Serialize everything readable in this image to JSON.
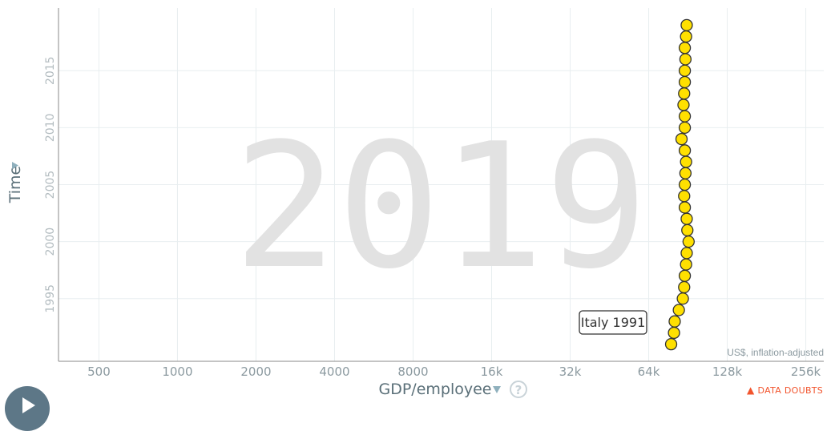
{
  "chart_data": {
    "type": "scatter",
    "year_watermark": "2019",
    "xlabel": "GDP/employee",
    "ylabel": "Time",
    "x_scale": "log2",
    "xlim": [
      350,
      300000
    ],
    "ylim": [
      1989.5,
      2020.5
    ],
    "x_ticks": [
      500,
      1000,
      2000,
      4000,
      8000,
      16000,
      32000,
      64000,
      128000,
      256000
    ],
    "x_tick_labels": [
      "500",
      "1000",
      "2000",
      "4000",
      "8000",
      "16k",
      "32k",
      "64k",
      "128k",
      "256k"
    ],
    "y_ticks": [
      1995,
      2000,
      2005,
      2010,
      2015
    ],
    "y_tick_labels": [
      "1995",
      "2000",
      "2005",
      "2010",
      "2015"
    ],
    "unit_note": "US$, inflation-adjusted",
    "highlight_label": "Italy 1991",
    "highlight_index": 0,
    "point_color": "#ffe000",
    "point_stroke": "#333333",
    "series": [
      {
        "points": [
          {
            "year": 1991,
            "x": 78000
          },
          {
            "year": 1992,
            "x": 80000
          },
          {
            "year": 1993,
            "x": 80500
          },
          {
            "year": 1994,
            "x": 83500
          },
          {
            "year": 1995,
            "x": 86500
          },
          {
            "year": 1996,
            "x": 87500
          },
          {
            "year": 1997,
            "x": 88000
          },
          {
            "year": 1998,
            "x": 89000
          },
          {
            "year": 1999,
            "x": 89500
          },
          {
            "year": 2000,
            "x": 91000
          },
          {
            "year": 2001,
            "x": 90000
          },
          {
            "year": 2002,
            "x": 89500
          },
          {
            "year": 2003,
            "x": 88000
          },
          {
            "year": 2004,
            "x": 87500
          },
          {
            "year": 2005,
            "x": 88000
          },
          {
            "year": 2006,
            "x": 88500
          },
          {
            "year": 2007,
            "x": 89000
          },
          {
            "year": 2008,
            "x": 88000
          },
          {
            "year": 2009,
            "x": 85500
          },
          {
            "year": 2010,
            "x": 88000
          },
          {
            "year": 2011,
            "x": 88000
          },
          {
            "year": 2012,
            "x": 87000
          },
          {
            "year": 2013,
            "x": 87500
          },
          {
            "year": 2014,
            "x": 88000
          },
          {
            "year": 2015,
            "x": 88000
          },
          {
            "year": 2016,
            "x": 88500
          },
          {
            "year": 2017,
            "x": 88000
          },
          {
            "year": 2018,
            "x": 89000
          },
          {
            "year": 2019,
            "x": 89500
          }
        ]
      }
    ]
  },
  "ui": {
    "data_doubts_label": "DATA DOUBTS",
    "help_glyph": "?",
    "axis_dropdown_icon": "triangle-down-icon",
    "warning_icon": "warning-triangle-icon",
    "play_icon": "play-icon"
  }
}
